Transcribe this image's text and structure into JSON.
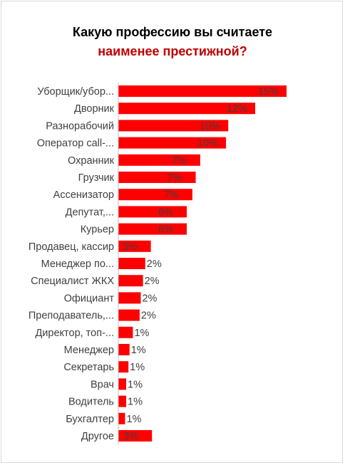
{
  "chart_data": {
    "type": "bar",
    "orientation": "horizontal",
    "title_line1": "Какую профессию вы считаете",
    "title_line2": "наименее престижной?",
    "categories": [
      "Уборщик/убор...",
      "Дворник",
      "Разнорабочий",
      "Оператор call-...",
      "Охранник",
      "Грузчик",
      "Ассенизатор",
      "Депутат,...",
      "Курьер",
      "Продавец, кассир",
      "Менеджер по...",
      "Специалист ЖКХ",
      "Официант",
      "Преподаватель,...",
      "Директор, топ-...",
      "Менеджер",
      "Секретарь",
      "Врач",
      "Водитель",
      "Бухгалтер",
      "Другое"
    ],
    "values": [
      15.0,
      12.2,
      9.8,
      9.6,
      7.3,
      6.9,
      6.6,
      6.1,
      6.1,
      2.9,
      2.4,
      2.2,
      2.0,
      1.9,
      1.3,
      1.0,
      0.9,
      0.7,
      0.7,
      0.6,
      3.0
    ],
    "labels": [
      "15%",
      "12%",
      "10%",
      "10%",
      "7%",
      "7%",
      "7%",
      "6%",
      "6%",
      "3%",
      "2%",
      "2%",
      "2%",
      "2%",
      "1%",
      "1%",
      "1%",
      "1%",
      "1%",
      "1%",
      "3%"
    ],
    "xlim": [
      0,
      16
    ],
    "bar_color": "#ff0000",
    "grid": false,
    "legend": "none"
  }
}
